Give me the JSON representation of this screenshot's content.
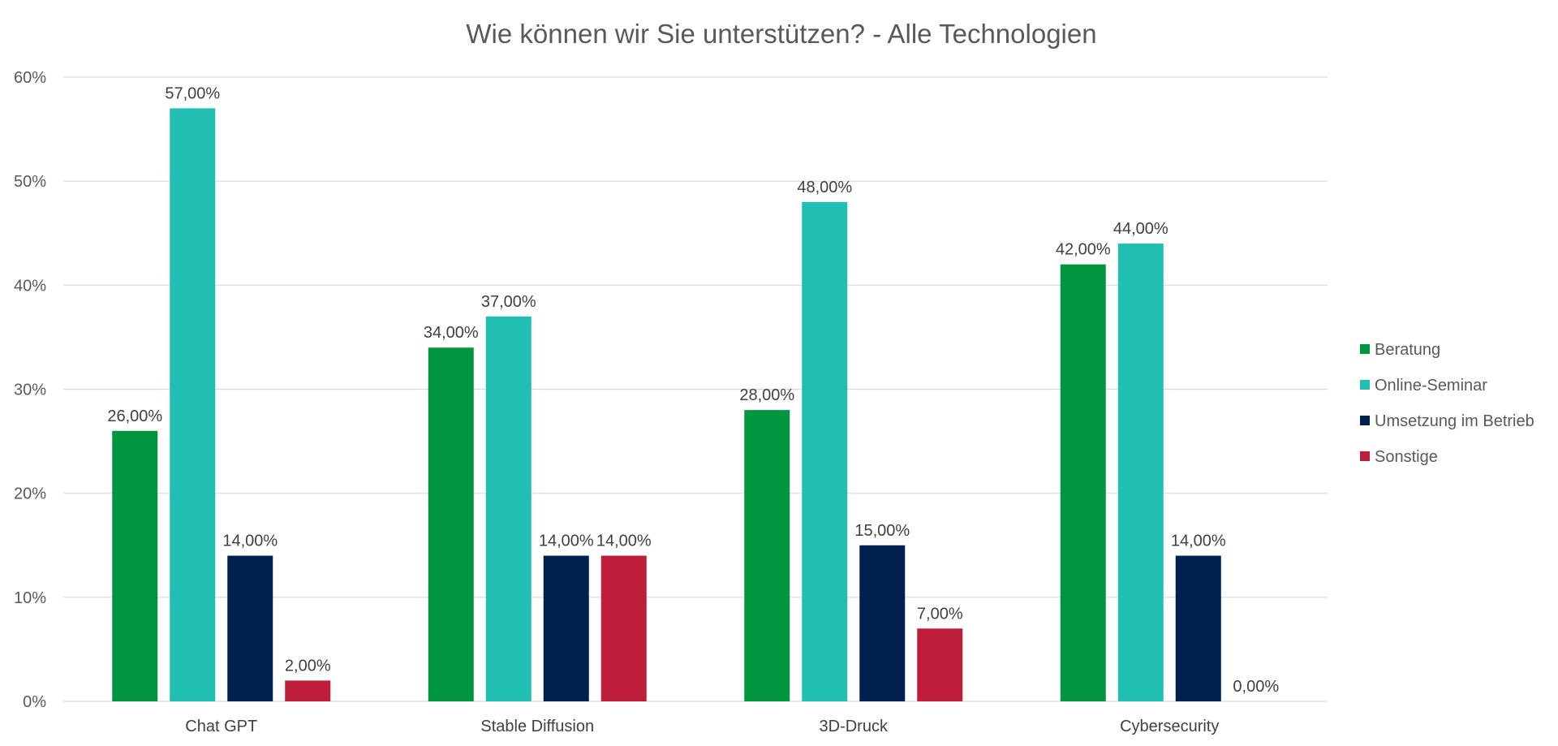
{
  "chart_data": {
    "type": "bar",
    "title": "Wie können wir Sie unterstützen? - Alle Technologien",
    "xlabel": "",
    "ylabel": "",
    "categories": [
      "Chat GPT",
      "Stable Diffusion",
      "3D-Druck",
      "Cybersecurity"
    ],
    "ylim": [
      0,
      60
    ],
    "yticks": [
      0,
      10,
      20,
      30,
      40,
      50,
      60
    ],
    "ytick_labels": [
      "0%",
      "10%",
      "20%",
      "30%",
      "40%",
      "50%",
      "60%"
    ],
    "grid": true,
    "legend_position": "right",
    "series": [
      {
        "name": "Beratung",
        "color": "#009640",
        "values": [
          26,
          34,
          28,
          42
        ],
        "labels": [
          "26,00%",
          "34,00%",
          "28,00%",
          "42,00%"
        ]
      },
      {
        "name": "Online-Seminar",
        "color": "#21BFB3",
        "values": [
          57,
          37,
          48,
          44
        ],
        "labels": [
          "57,00%",
          "37,00%",
          "48,00%",
          "44,00%"
        ]
      },
      {
        "name": "Umsetzung im Betrieb",
        "color": "#00204E",
        "values": [
          14,
          14,
          15,
          14
        ],
        "labels": [
          "14,00%",
          "14,00%",
          "15,00%",
          "14,00%"
        ]
      },
      {
        "name": "Sonstige",
        "color": "#BE1E3C",
        "values": [
          2,
          14,
          7,
          0
        ],
        "labels": [
          "2,00%",
          "14,00%",
          "7,00%",
          "0,00%"
        ]
      }
    ]
  }
}
